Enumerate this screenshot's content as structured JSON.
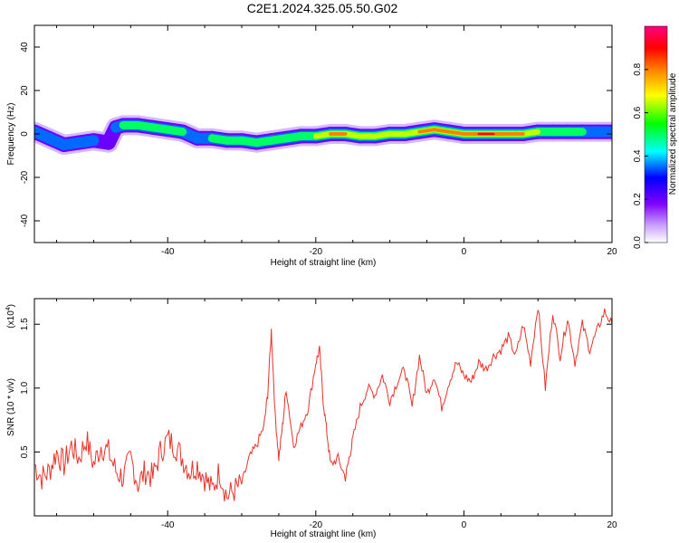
{
  "title": "C2E1.2024.325.05.50.G02",
  "chart_data": [
    {
      "type": "heatmap",
      "xlabel": "Height of straight line (km)",
      "ylabel": "Frequency (Hz)",
      "xlim": [
        -58,
        20
      ],
      "ylim": [
        -50,
        50
      ],
      "xticks": [
        -40,
        -20,
        0,
        20
      ],
      "yticks": [
        40,
        20,
        0,
        -20,
        -40
      ],
      "colorbar": {
        "label": "Normalized spectral amplitude",
        "ticks": [
          "0.0",
          "0.2",
          "0.4",
          "0.6",
          "0.8"
        ],
        "tick_values": [
          0,
          0.2,
          0.4,
          0.6,
          0.8
        ],
        "range": [
          0,
          1
        ]
      },
      "ridge": {
        "x": [
          -58,
          -56,
          -54,
          -52,
          -50,
          -48,
          -47,
          -46,
          -44,
          -42,
          -40,
          -38,
          -36,
          -34,
          -32,
          -30,
          -28,
          -26,
          -24,
          -22,
          -20,
          -18,
          -16,
          -14,
          -12,
          -10,
          -8,
          -6,
          -4,
          -2,
          0,
          2,
          4,
          6,
          8,
          10,
          12,
          14,
          16,
          18,
          20
        ],
        "y": [
          1,
          -2,
          -5,
          -4,
          -3,
          -4,
          3,
          4,
          4,
          3,
          2,
          1,
          -2,
          -2,
          -3,
          -3,
          -4,
          -3,
          -2,
          -1,
          -1,
          0,
          0,
          -1,
          -1,
          0,
          0,
          1,
          2,
          1,
          0,
          0,
          0,
          0,
          0,
          1,
          1,
          1,
          1,
          1,
          1
        ],
        "amplitude": [
          0.35,
          0.4,
          0.45,
          0.4,
          0.35,
          0.3,
          0.3,
          0.55,
          0.5,
          0.55,
          0.6,
          0.5,
          0.45,
          0.5,
          0.55,
          0.55,
          0.6,
          0.5,
          0.55,
          0.6,
          0.65,
          0.85,
          0.75,
          0.7,
          0.7,
          0.65,
          0.7,
          0.75,
          0.9,
          0.8,
          0.85,
          0.95,
          0.9,
          0.85,
          0.8,
          0.55,
          0.5,
          0.55,
          0.5,
          0.45,
          0.45
        ]
      }
    },
    {
      "type": "line",
      "xlabel": "Height of straight line (km)",
      "ylabel": "SNR (10 * v/v)",
      "scale_label": "(x10",
      "scale_exp": "4",
      "scale_suffix": ")",
      "xlim": [
        -58,
        20
      ],
      "ylim": [
        0,
        1.7
      ],
      "xticks": [
        -40,
        -20,
        0,
        20
      ],
      "yticks": [
        0.5,
        1.0,
        1.5
      ],
      "color": "#e8332a",
      "x": [
        -58,
        -57,
        -56,
        -55,
        -54,
        -53,
        -52,
        -51,
        -50,
        -49,
        -48,
        -47,
        -46,
        -45,
        -44,
        -43,
        -42,
        -41,
        -40,
        -39,
        -38,
        -37,
        -36,
        -35,
        -34,
        -33,
        -32,
        -31,
        -30,
        -29,
        -28,
        -27,
        -26.5,
        -26,
        -25.5,
        -25,
        -24.5,
        -24,
        -23,
        -22,
        -21,
        -20,
        -19.5,
        -19,
        -18.5,
        -18,
        -17,
        -16,
        -15.5,
        -15,
        -14,
        -13,
        -12,
        -11,
        -10,
        -9,
        -8,
        -7,
        -6,
        -5,
        -4,
        -3,
        -2,
        -1,
        0,
        1,
        2,
        3,
        4,
        5,
        6,
        7,
        8,
        9,
        10,
        11,
        12,
        13,
        14,
        15,
        16,
        17,
        18,
        19,
        20
      ],
      "y": [
        0.4,
        0.3,
        0.35,
        0.5,
        0.4,
        0.55,
        0.45,
        0.6,
        0.4,
        0.55,
        0.5,
        0.35,
        0.3,
        0.45,
        0.25,
        0.35,
        0.3,
        0.5,
        0.6,
        0.55,
        0.45,
        0.35,
        0.4,
        0.3,
        0.2,
        0.35,
        0.15,
        0.2,
        0.25,
        0.45,
        0.55,
        0.7,
        0.95,
        1.45,
        0.8,
        0.45,
        0.7,
        1.0,
        0.55,
        0.7,
        0.85,
        1.2,
        1.3,
        0.9,
        0.65,
        0.4,
        0.45,
        0.3,
        0.45,
        0.6,
        0.85,
        1.0,
        0.95,
        1.1,
        0.9,
        1.05,
        1.15,
        0.85,
        1.25,
        0.95,
        1.1,
        0.85,
        1.05,
        1.2,
        1.1,
        1.05,
        1.2,
        1.15,
        1.25,
        1.3,
        1.4,
        1.25,
        1.5,
        1.2,
        1.65,
        1.0,
        1.6,
        1.25,
        1.55,
        1.2,
        1.5,
        1.3,
        1.45,
        1.6,
        1.5
      ]
    }
  ]
}
